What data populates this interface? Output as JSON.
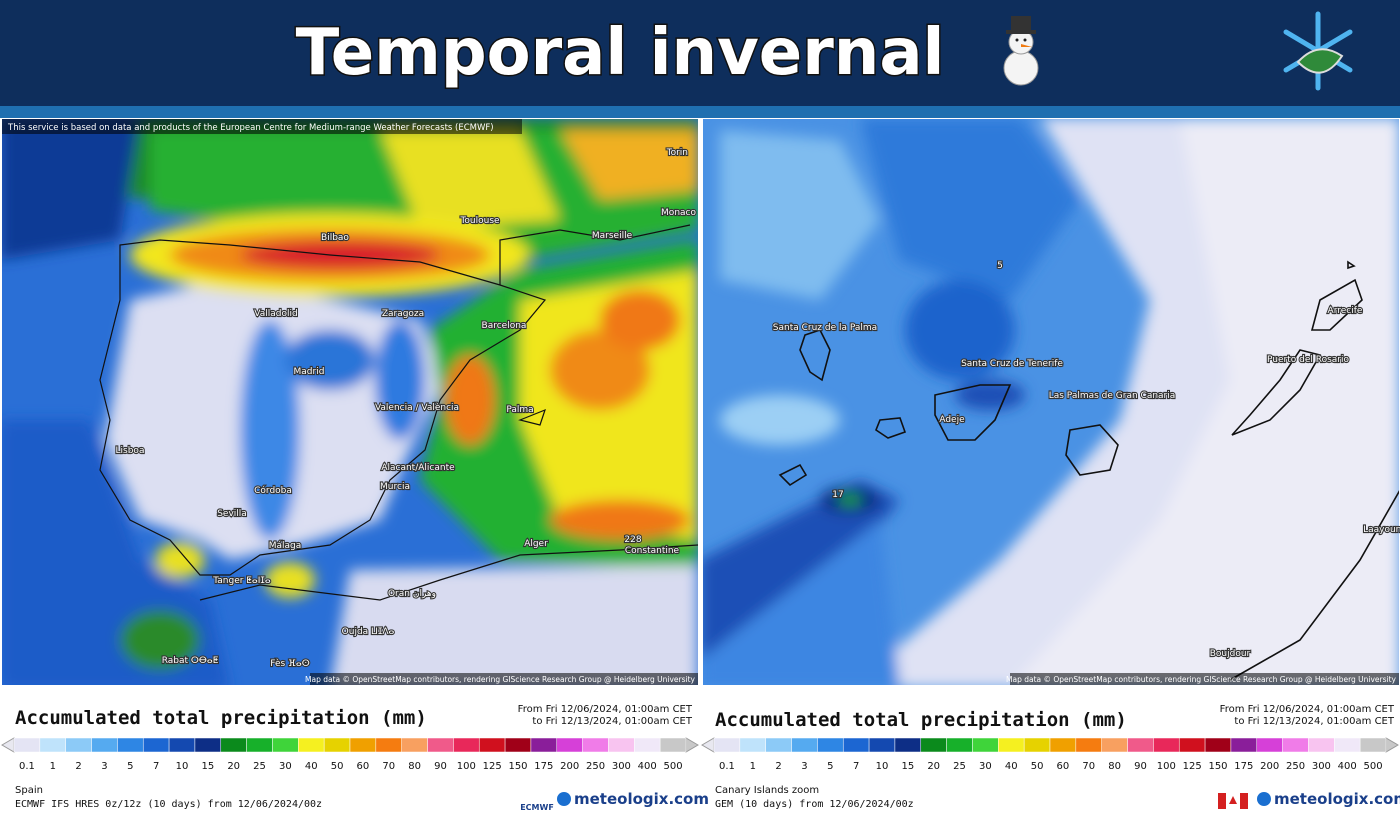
{
  "header": {
    "title": "Temporal invernal"
  },
  "legend": {
    "title": "Accumulated total precipitation (mm)",
    "scale": [
      0.1,
      1,
      2,
      3,
      5,
      7,
      10,
      15,
      20,
      25,
      30,
      40,
      50,
      60,
      70,
      80,
      90,
      100,
      125,
      150,
      175,
      200,
      250,
      300,
      400,
      500
    ],
    "colors": [
      "#e4e4f4",
      "#bfe3fb",
      "#8ccaf7",
      "#55aaf0",
      "#2e86e4",
      "#1c66d2",
      "#1449b0",
      "#0d2e86",
      "#0b8a1c",
      "#17b02a",
      "#3fd43a",
      "#f5f020",
      "#e6d200",
      "#f0a000",
      "#f57c10",
      "#f8a060",
      "#f05a8a",
      "#e8285a",
      "#d0101e",
      "#a00018",
      "#8a1e9a",
      "#d640d8",
      "#f07ce8",
      "#f8c4f0",
      "#f0e8f8",
      "#c8c8c8"
    ],
    "from": "From Fri 12/06/2024, 01:00am CET",
    "to": "to Fri 12/13/2024, 01:00am CET",
    "brand": "meteologix.com"
  },
  "panels": [
    {
      "attribution": "This service is based on data and products of the European Centre for Medium-range Weather Forecasts (ECMWF)",
      "map_credit": "Map data © OpenStreetMap contributors, rendering GIScience Research Group @ Heidelberg University",
      "places": [
        "Torin",
        "Monaco",
        "Toulouse",
        "Marseille",
        "Bilbao",
        "Valladolid",
        "Zaragoza",
        "Barcelona",
        "Madrid",
        "Valencia / València",
        "Palma",
        "Lisboa",
        "Alacant/Alicante",
        "Murcia",
        "Córdoba",
        "Sevilla",
        "Málaga",
        "Tanger ⵟⴰⵏⵊⴰ",
        "Alger",
        "Constantine",
        "Oran وهران",
        "Oujda ⵡⵊⴷⴰ",
        "Rabat ⵔⴱⴰⵟ",
        "Fès ⴼⴰⵙ",
        "228"
      ],
      "region": "Spain",
      "model": "ECMWF IFS HRES 0z/12z (10 days)  from  12/06/2024/00z",
      "logo": "ECMWF"
    },
    {
      "map_credit": "Map data © OpenStreetMap contributors, rendering GIScience Research Group @ Heidelberg University",
      "places": [
        "Santa Cruz de la Palma",
        "Santa Cruz de Tenerife",
        "Adeje",
        "Las Palmas de Gran Canaria",
        "Arrecife",
        "Puerto del Rosario",
        "Laayoune",
        "Boujdour",
        "17",
        "5"
      ],
      "region": "Canary Islands zoom",
      "model": "GEM (10 days)  from  12/06/2024/00z"
    }
  ]
}
